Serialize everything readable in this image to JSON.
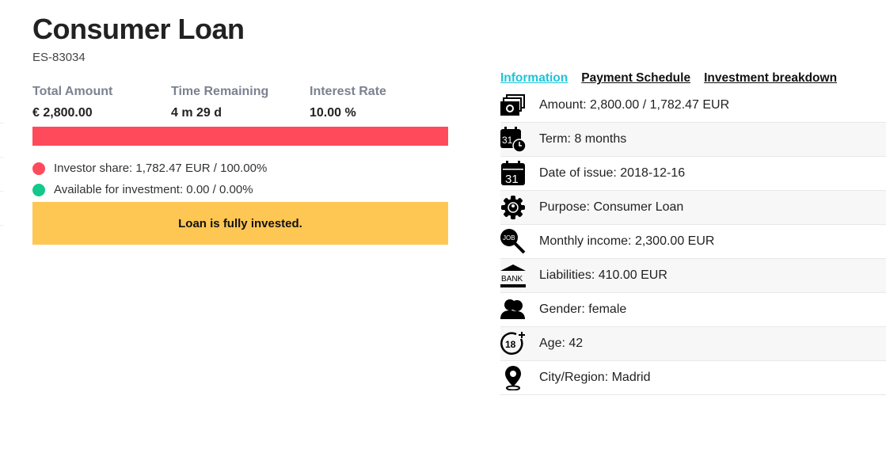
{
  "header": {
    "title": "Consumer Loan",
    "loan_id": "ES-83034"
  },
  "stats": [
    {
      "label": "Total Amount",
      "value": "€ 2,800.00"
    },
    {
      "label": "Time Remaining",
      "value": "4 m 29 d"
    },
    {
      "label": "Interest Rate",
      "value": "10.00 %"
    }
  ],
  "progress": {
    "invested_percent": 100,
    "fill_color": "#ff4a5c"
  },
  "legend": [
    {
      "text": "Investor share: 1,782.47 EUR / 100.00%",
      "color": "#ff4a5c"
    },
    {
      "text": "Available for investment: 0.00 / 0.00%",
      "color": "#12c98a"
    }
  ],
  "notice": "Loan is fully invested.",
  "tabs": [
    {
      "label": "Information",
      "active": true
    },
    {
      "label": "Payment Schedule",
      "active": false
    },
    {
      "label": "Investment breakdown",
      "active": false
    }
  ],
  "info": [
    {
      "icon": "money-stack-icon",
      "text": "Amount: 2,800.00 / 1,782.47 EUR"
    },
    {
      "icon": "calendar-clock-icon",
      "text": "Term: 8 months"
    },
    {
      "icon": "calendar-icon",
      "text": "Date of issue: 2018-12-16"
    },
    {
      "icon": "gear-person-icon",
      "text": "Purpose: Consumer Loan"
    },
    {
      "icon": "job-search-icon",
      "text": "Monthly income: 2,300.00 EUR"
    },
    {
      "icon": "bank-icon",
      "text": "Liabilities: 410.00 EUR"
    },
    {
      "icon": "gender-icon",
      "text": "Gender: female"
    },
    {
      "icon": "age-18-icon",
      "text": "Age: 42"
    },
    {
      "icon": "location-pin-icon",
      "text": "City/Region: Madrid"
    }
  ]
}
